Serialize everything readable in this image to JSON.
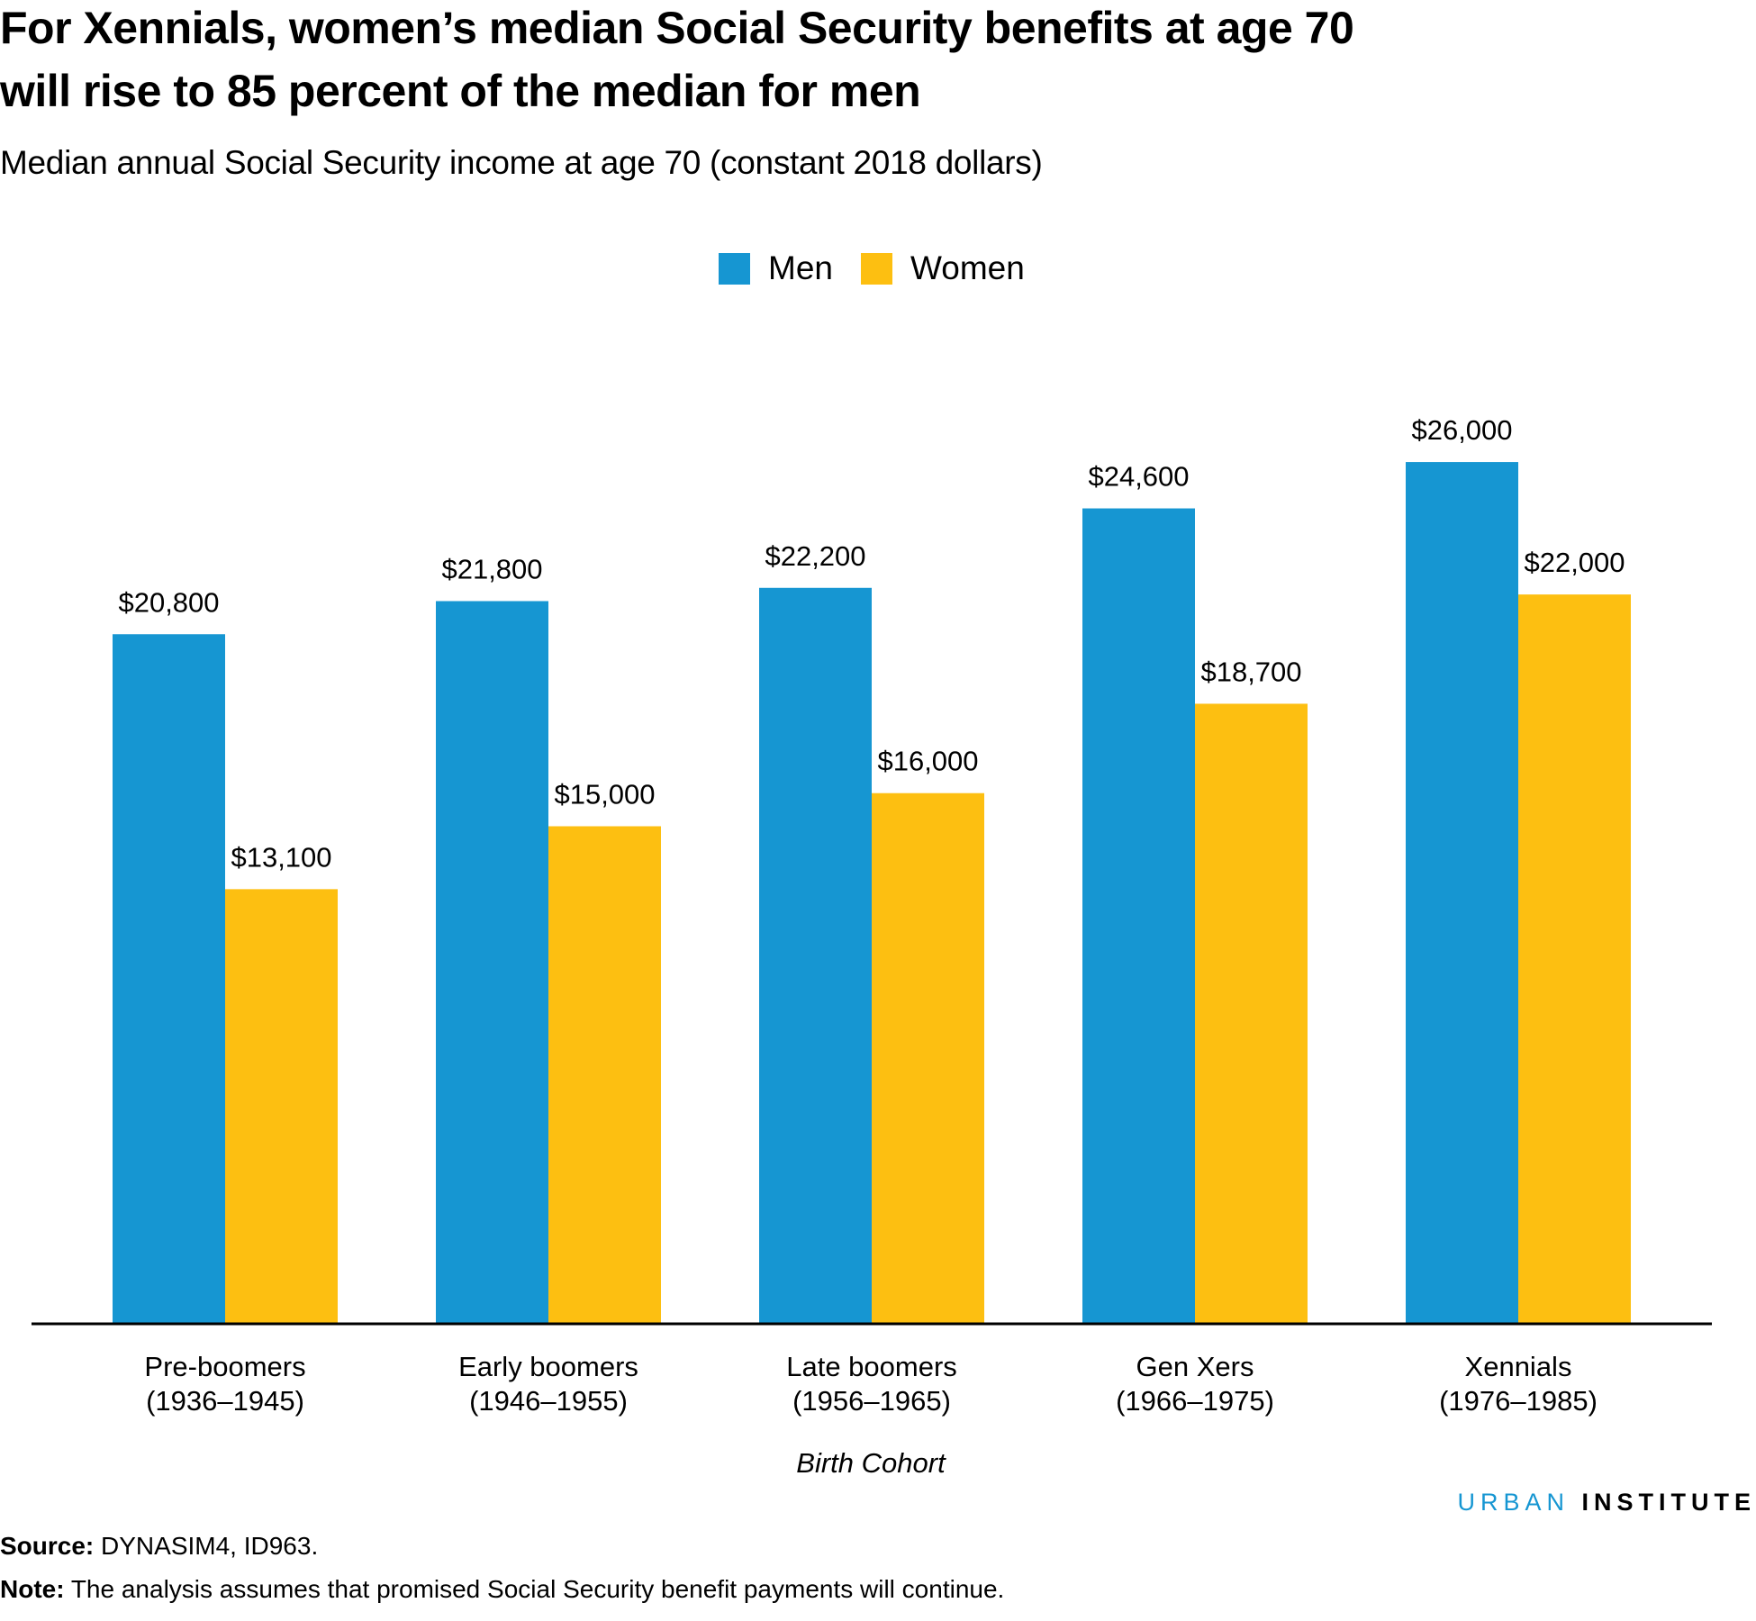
{
  "title": "For Xennials, women’s median Social Security benefits at age 70 will rise to 85 percent of the median for men",
  "subtitle": "Median annual Social Security income at age 70 (constant 2018 dollars)",
  "brand": {
    "part1": "URBAN",
    "part2": "INSTITUTE"
  },
  "source": {
    "label": "Source:",
    "text": "DYNASIM4, ID963."
  },
  "note": {
    "label": "Note:",
    "text": "The analysis assumes that promised Social Security benefit payments will continue."
  },
  "chart_data": {
    "type": "bar",
    "title": "For Xennials, women’s median Social Security benefits at age 70 will rise to 85 percent of the median for men",
    "xlabel": "Birth Cohort",
    "ylabel": "",
    "categories": [
      {
        "name": "Pre-boomers",
        "years": "(1936–1945)"
      },
      {
        "name": "Early boomers",
        "years": "(1946–1955)"
      },
      {
        "name": "Late boomers",
        "years": "(1956–1965)"
      },
      {
        "name": "Gen Xers",
        "years": "(1966–1975)"
      },
      {
        "name": "Xennials",
        "years": "(1976–1985)"
      }
    ],
    "series": [
      {
        "name": "Men",
        "color": "#1696d2",
        "values": [
          20800,
          21800,
          22200,
          24600,
          26000
        ],
        "labels": [
          "$20,800",
          "$21,800",
          "$22,200",
          "$24,600",
          "$26,000"
        ]
      },
      {
        "name": "Women",
        "color": "#fdbf11",
        "values": [
          13100,
          15000,
          16000,
          18700,
          22000
        ],
        "labels": [
          "$13,100",
          "$15,000",
          "$16,000",
          "$18,700",
          "$22,000"
        ]
      }
    ],
    "ylim": [
      0,
      30000
    ],
    "grid": false,
    "y_axis_shown": false,
    "legend_position": "top-center"
  }
}
